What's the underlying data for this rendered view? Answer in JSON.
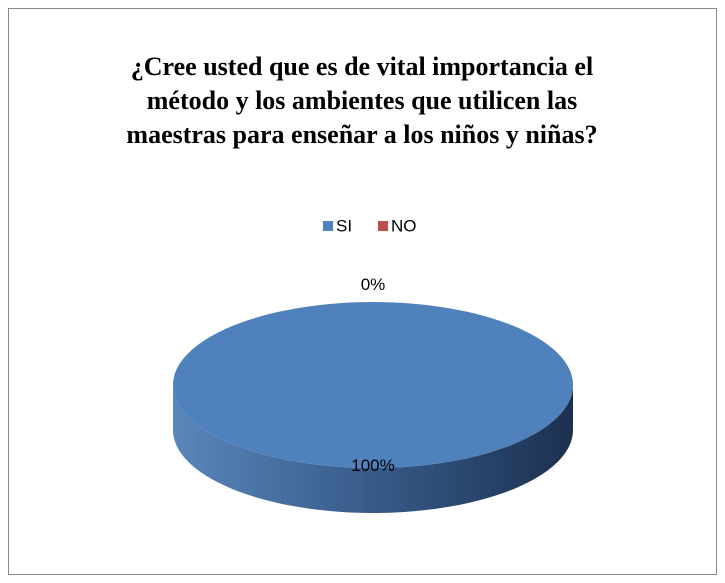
{
  "chart_data": {
    "type": "pie",
    "title": "¿Cree usted que es de vital importancia el método y los ambientes que utilicen las maestras para enseñar a los niños y niñas?",
    "categories": [
      "SI",
      "NO"
    ],
    "values": [
      100,
      0
    ],
    "value_labels": [
      "100%",
      "0%"
    ],
    "colors": [
      "#4f81bd",
      "#c0504d"
    ],
    "legend": "top"
  }
}
